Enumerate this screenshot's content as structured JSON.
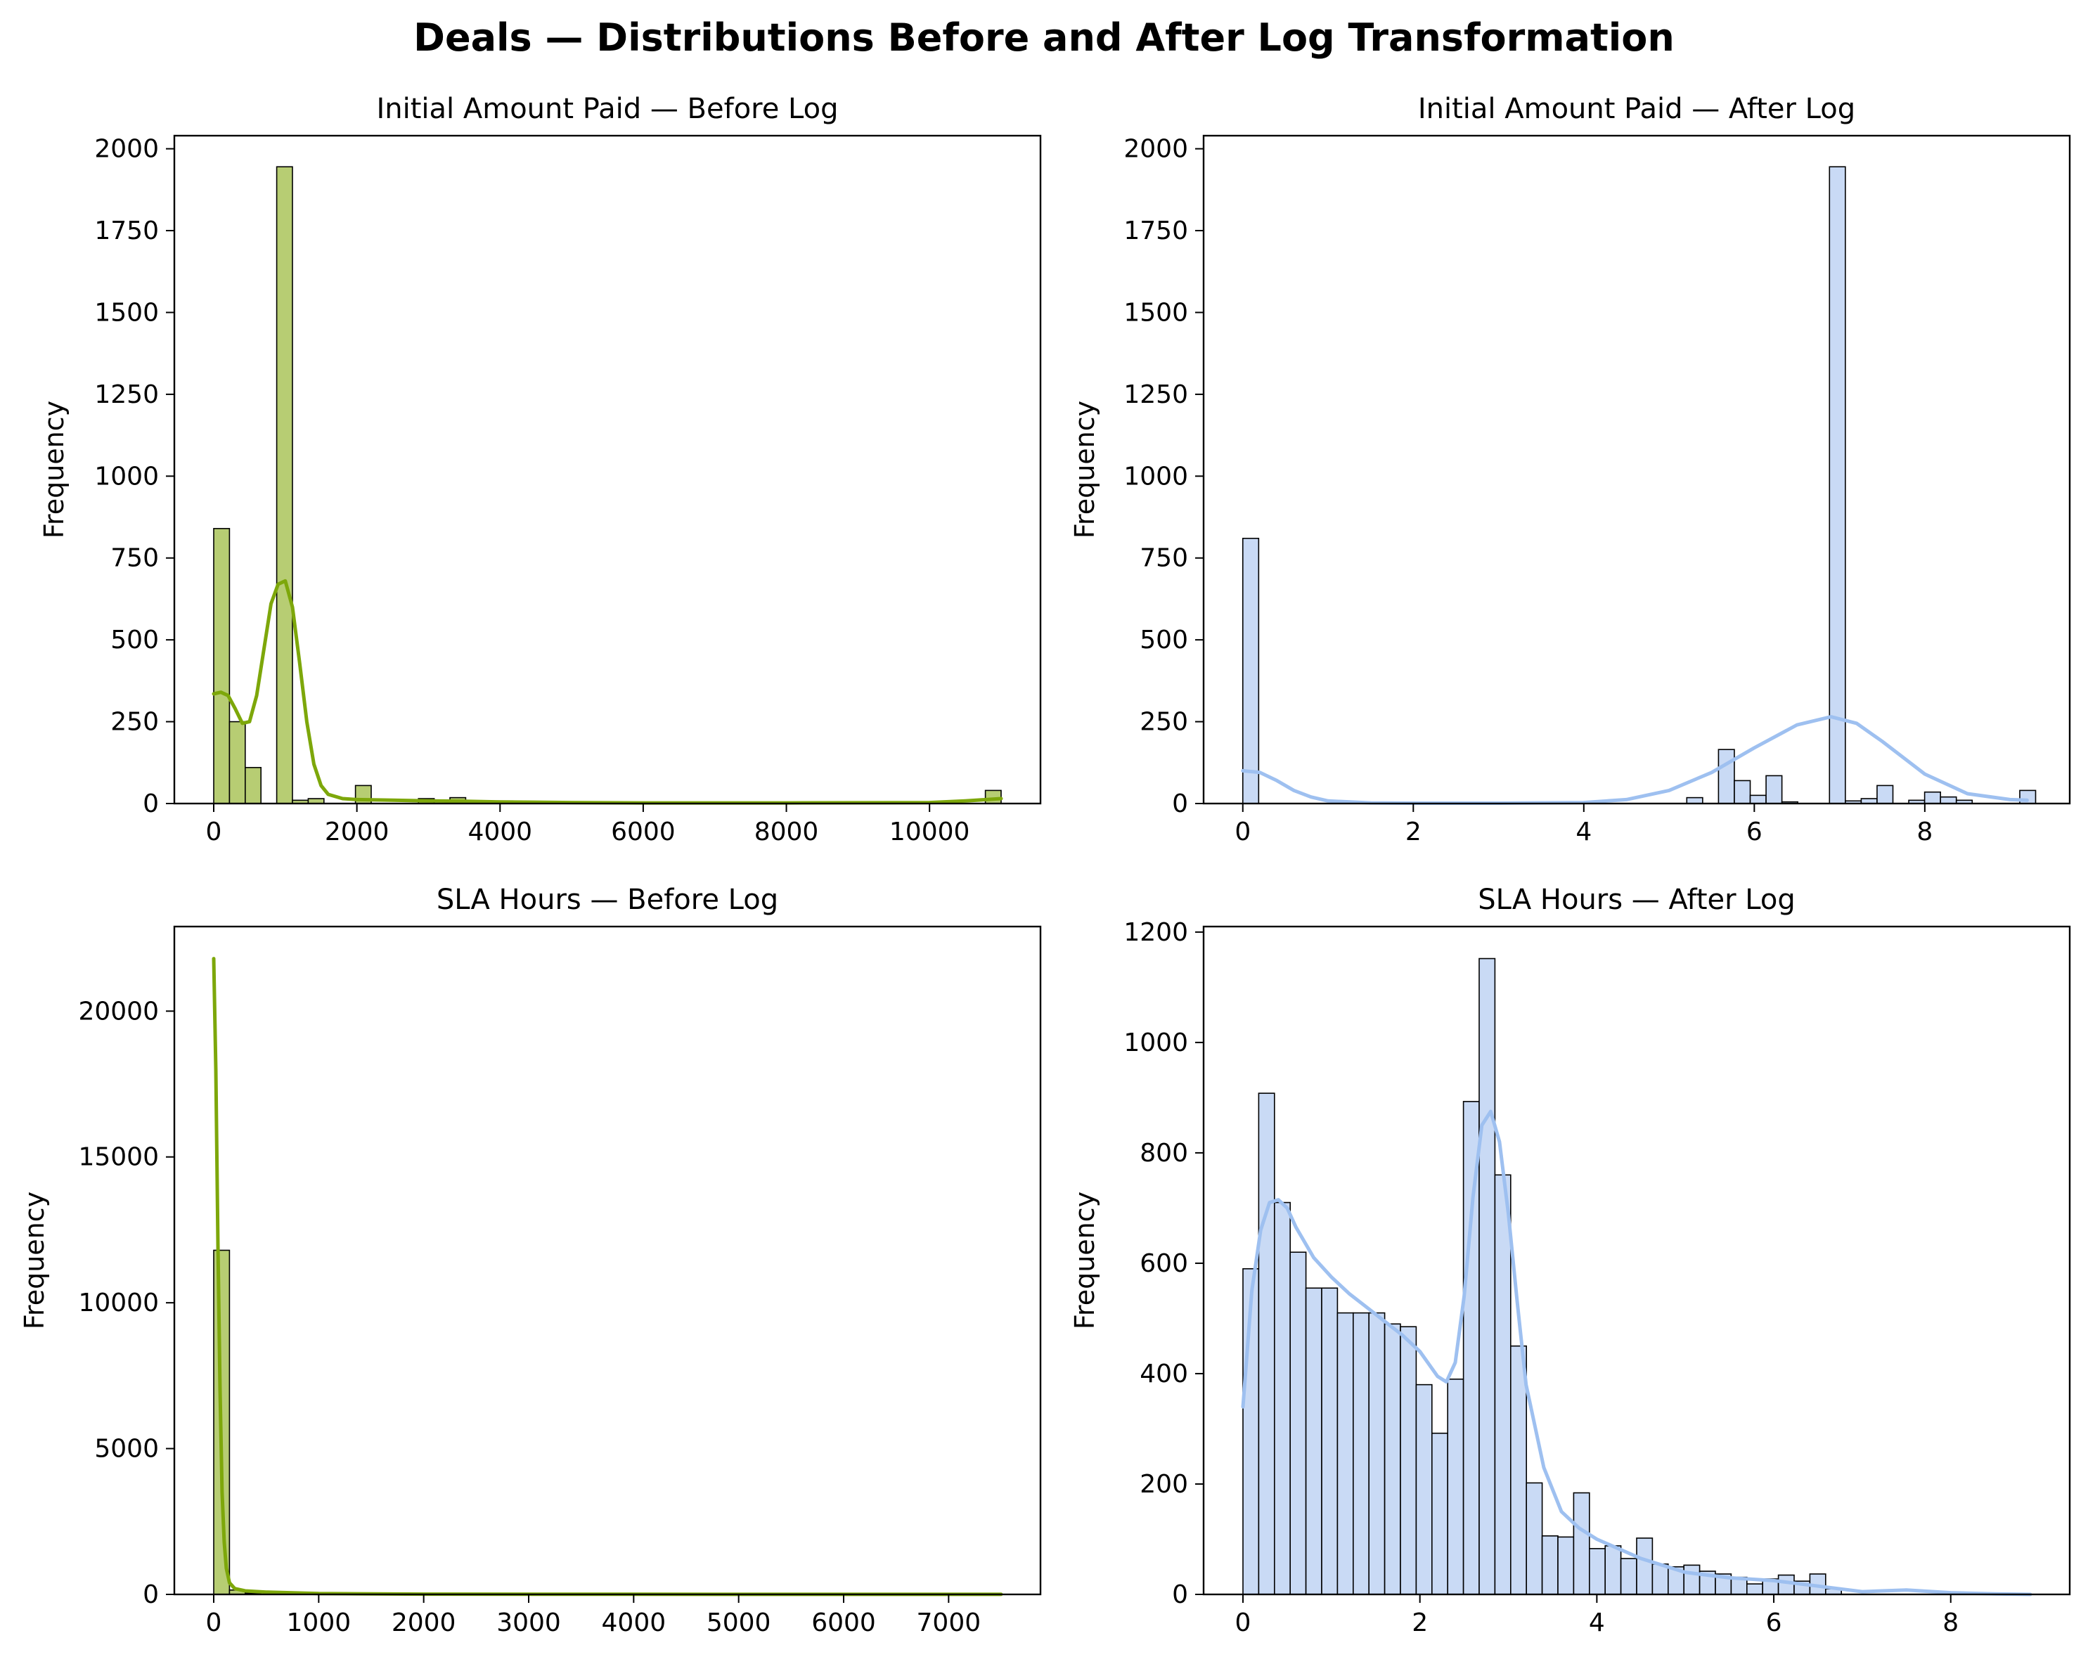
{
  "figure": {
    "title": "Deals — Distributions Before and After Log Transformation",
    "colors": {
      "before_fill": "#b7cd73",
      "before_line": "#7da70a",
      "after_fill": "#c9daf5",
      "after_line": "#9ec0f0",
      "edge": "#000000"
    }
  },
  "chart_data": [
    {
      "type": "bar",
      "title": "Initial Amount Paid — Before Log",
      "xlabel": "",
      "ylabel": "Frequency",
      "xlim": [
        -550,
        11550
      ],
      "ylim": [
        0,
        2040
      ],
      "xticks": [
        0,
        2000,
        4000,
        6000,
        8000,
        10000
      ],
      "yticks": [
        0,
        250,
        500,
        750,
        1000,
        1250,
        1500,
        1750,
        2000
      ],
      "bin_width": 220,
      "bins_start": [
        0,
        220,
        440,
        880,
        1100,
        1320,
        1980,
        2860,
        3300,
        3960,
        10780
      ],
      "counts": [
        840,
        250,
        110,
        1945,
        10,
        15,
        55,
        15,
        18,
        8,
        40
      ],
      "kde": {
        "x": [
          0,
          100,
          200,
          300,
          400,
          500,
          600,
          700,
          800,
          900,
          1000,
          1100,
          1200,
          1300,
          1400,
          1500,
          1600,
          1800,
          2000,
          2500,
          3000,
          3500,
          4000,
          5000,
          6000,
          8000,
          10000,
          10500,
          11000
        ],
        "y": [
          335,
          340,
          330,
          290,
          245,
          250,
          330,
          470,
          610,
          670,
          680,
          600,
          430,
          250,
          120,
          55,
          28,
          15,
          12,
          10,
          8,
          7,
          5,
          3,
          2,
          2,
          3,
          8,
          15
        ]
      }
    },
    {
      "type": "bar",
      "title": "Initial Amount Paid — After Log",
      "xlabel": "",
      "ylabel": "Frequency",
      "xlim": [
        -0.46,
        9.7
      ],
      "ylim": [
        0,
        2040
      ],
      "xticks": [
        0,
        2,
        4,
        6,
        8
      ],
      "yticks": [
        0,
        250,
        500,
        750,
        1000,
        1250,
        1500,
        1750,
        2000
      ],
      "bin_width": 0.186,
      "bins_start": [
        0,
        5.208,
        5.58,
        5.766,
        5.952,
        6.138,
        6.324,
        6.882,
        7.068,
        7.254,
        7.44,
        7.812,
        7.998,
        8.184,
        8.37,
        9.114
      ],
      "counts": [
        810,
        18,
        165,
        70,
        25,
        85,
        5,
        1945,
        8,
        15,
        55,
        10,
        35,
        20,
        10,
        40
      ],
      "kde": {
        "x": [
          0,
          0.2,
          0.4,
          0.6,
          0.8,
          1.0,
          1.5,
          2.0,
          3.0,
          4.0,
          4.5,
          5.0,
          5.5,
          6.0,
          6.5,
          6.9,
          7.2,
          7.5,
          8.0,
          8.5,
          9.0,
          9.2
        ],
        "y": [
          100,
          95,
          70,
          40,
          20,
          8,
          2,
          1,
          1,
          3,
          12,
          40,
          95,
          170,
          240,
          265,
          245,
          190,
          90,
          30,
          12,
          10
        ]
      }
    },
    {
      "type": "bar",
      "title": "SLA Hours — Before Log",
      "xlabel": "",
      "ylabel": "Frequency",
      "xlim": [
        -375,
        7875
      ],
      "ylim": [
        0,
        22900
      ],
      "xticks": [
        0,
        1000,
        2000,
        3000,
        4000,
        5000,
        6000,
        7000
      ],
      "yticks": [
        0,
        5000,
        10000,
        15000,
        20000
      ],
      "bin_width": 150,
      "bins_start": [
        0,
        150,
        300
      ],
      "counts": [
        11800,
        150,
        40
      ],
      "kde": {
        "x": [
          0,
          20,
          40,
          60,
          80,
          100,
          120,
          150,
          200,
          300,
          500,
          1000,
          2000,
          4000,
          6000,
          7500
        ],
        "y": [
          21800,
          18000,
          12000,
          7000,
          3500,
          1800,
          900,
          400,
          200,
          120,
          80,
          30,
          10,
          5,
          3,
          2
        ]
      }
    },
    {
      "type": "bar",
      "title": "SLA Hours — After Log",
      "xlabel": "",
      "ylabel": "Frequency",
      "xlim": [
        -0.445,
        9.345
      ],
      "ylim": [
        0,
        1210
      ],
      "xticks": [
        0,
        2,
        4,
        6,
        8
      ],
      "yticks": [
        0,
        200,
        400,
        600,
        800,
        1000,
        1200
      ],
      "bin_width": 0.178,
      "bins_start": [
        0,
        0.178,
        0.356,
        0.534,
        0.712,
        0.89,
        1.068,
        1.246,
        1.424,
        1.602,
        1.78,
        1.958,
        2.136,
        2.314,
        2.492,
        2.67,
        2.848,
        3.026,
        3.204,
        3.382,
        3.56,
        3.738,
        3.916,
        4.094,
        4.272,
        4.45,
        4.628,
        4.806,
        4.984,
        5.162,
        5.34,
        5.518,
        5.696,
        5.874,
        6.052,
        6.23,
        6.408,
        6.586
      ],
      "counts": [
        590,
        908,
        710,
        620,
        555,
        555,
        510,
        510,
        510,
        490,
        485,
        380,
        292,
        390,
        893,
        1152,
        760,
        450,
        202,
        106,
        104,
        184,
        83,
        88,
        65,
        102,
        55,
        50,
        53,
        42,
        37,
        31,
        19,
        28,
        35,
        24,
        37,
        10
      ],
      "kde": {
        "x": [
          0,
          0.1,
          0.2,
          0.3,
          0.4,
          0.5,
          0.6,
          0.8,
          1.0,
          1.2,
          1.4,
          1.6,
          1.8,
          2.0,
          2.2,
          2.3,
          2.4,
          2.5,
          2.6,
          2.7,
          2.8,
          2.9,
          3.0,
          3.1,
          3.2,
          3.4,
          3.6,
          3.8,
          4.0,
          4.5,
          5.0,
          5.5,
          6.0,
          6.5,
          7.0,
          7.5,
          8.0,
          8.5,
          8.9
        ],
        "y": [
          340,
          550,
          660,
          710,
          715,
          700,
          665,
          610,
          575,
          545,
          520,
          495,
          470,
          440,
          395,
          385,
          420,
          540,
          720,
          850,
          875,
          820,
          690,
          530,
          380,
          230,
          150,
          120,
          100,
          65,
          40,
          30,
          25,
          15,
          5,
          8,
          3,
          1,
          0
        ]
      }
    }
  ]
}
